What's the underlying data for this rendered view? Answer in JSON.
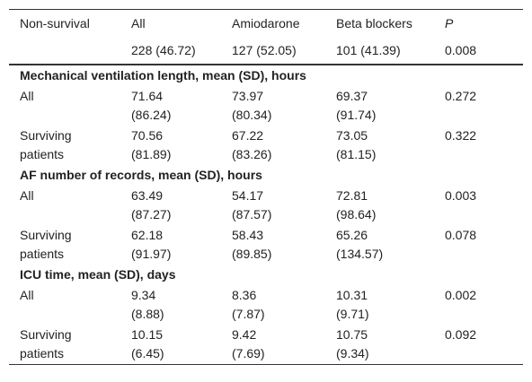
{
  "header": {
    "columns": [
      "Non-survival",
      "All",
      "Amiodarone",
      "Beta blockers",
      "P"
    ],
    "counts": [
      "228 (46.72)",
      "127 (52.05)",
      "101 (41.39)",
      "0.008"
    ]
  },
  "sections": [
    {
      "title": "Mechanical ventilation length, mean (SD), hours",
      "rows": [
        {
          "label": "All",
          "cells": [
            "71.64\n(86.24)",
            "73.97\n(80.34)",
            "69.37\n(91.74)",
            "0.272"
          ]
        },
        {
          "label": "Surviving\npatients",
          "cells": [
            "70.56\n(81.89)",
            "67.22\n(83.26)",
            "73.05\n(81.15)",
            "0.322"
          ]
        }
      ]
    },
    {
      "title": "AF number of records, mean (SD), hours",
      "rows": [
        {
          "label": "All",
          "cells": [
            "63.49\n(87.27)",
            "54.17\n(87.57)",
            "72.81\n(98.64)",
            "0.003"
          ]
        },
        {
          "label": "Surviving\npatients",
          "cells": [
            "62.18\n(91.97)",
            "58.43\n(89.85)",
            "65.26\n(134.57)",
            "0.078"
          ]
        }
      ]
    },
    {
      "title": "ICU time, mean (SD), days",
      "rows": [
        {
          "label": "All",
          "cells": [
            "9.34\n(8.88)",
            "8.36\n(7.87)",
            "10.31\n(9.71)",
            "0.002"
          ]
        },
        {
          "label": "Surviving\npatients",
          "cells": [
            "10.15\n(6.45)",
            "9.42\n(7.69)",
            "10.75\n(9.34)",
            "0.092"
          ]
        }
      ]
    }
  ]
}
